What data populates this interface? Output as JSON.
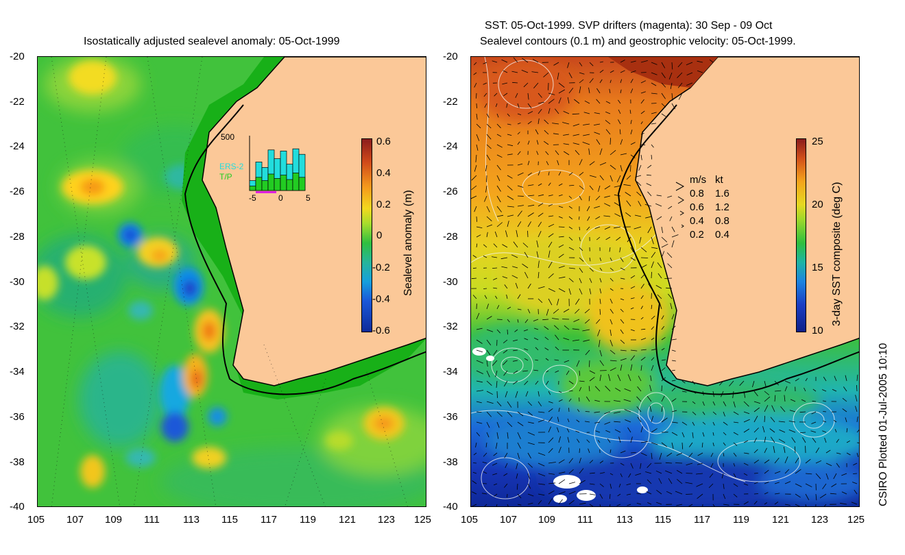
{
  "left_panel": {
    "title": "Isostatically adjusted sealevel anomaly: 05-Oct-1999",
    "colorbar": {
      "label": "Sealevel anomaly (m)",
      "ticks": [
        "0.6",
        "0.4",
        "0.2",
        "0",
        "-0.2",
        "-0.4",
        "-0.6"
      ]
    },
    "inset": {
      "ymax_label": "500",
      "series_labels": [
        "ERS-2",
        "T/P"
      ],
      "series_colors": [
        "#22dddd",
        "#22cc22"
      ],
      "x_ticks": [
        "-5",
        "0",
        "5"
      ],
      "ers2_counts": [
        90,
        260,
        210,
        370,
        290,
        360,
        240,
        380,
        330
      ],
      "tp_counts": [
        40,
        120,
        90,
        150,
        110,
        140,
        100,
        160,
        120
      ],
      "ymax": 500
    }
  },
  "right_panel": {
    "title_line1": "SST: 05-Oct-1999. SVP drifters (magenta): 30 Sep - 09 Oct",
    "title_line2": "Sealevel contours (0.1 m) and geostrophic velocity: 05-Oct-1999.",
    "colorbar": {
      "label": "3-day SST composite (deg C)",
      "ticks": [
        "25",
        "20",
        "15",
        "10"
      ]
    },
    "velocity_legend": {
      "header_ms": "m/s",
      "header_kt": "kt",
      "rows": [
        {
          "ms": "0.8",
          "kt": "1.6"
        },
        {
          "ms": "0.6",
          "kt": "1.2"
        },
        {
          "ms": "0.4",
          "kt": "0.8"
        },
        {
          "ms": "0.2",
          "kt": "0.4"
        }
      ]
    }
  },
  "axes": {
    "lat_ticks": [
      "-20",
      "-22",
      "-24",
      "-26",
      "-28",
      "-30",
      "-32",
      "-34",
      "-36",
      "-38",
      "-40"
    ],
    "lon_ticks": [
      "105",
      "107",
      "109",
      "111",
      "113",
      "115",
      "117",
      "119",
      "121",
      "123",
      "125"
    ]
  },
  "footer": {
    "credit": "CSIRO Plotted 01-Jul-2005 10:10"
  },
  "colors": {
    "land": "#fbc898",
    "coast_green": "#1bb51b",
    "sea_green": "#3ec23e"
  }
}
